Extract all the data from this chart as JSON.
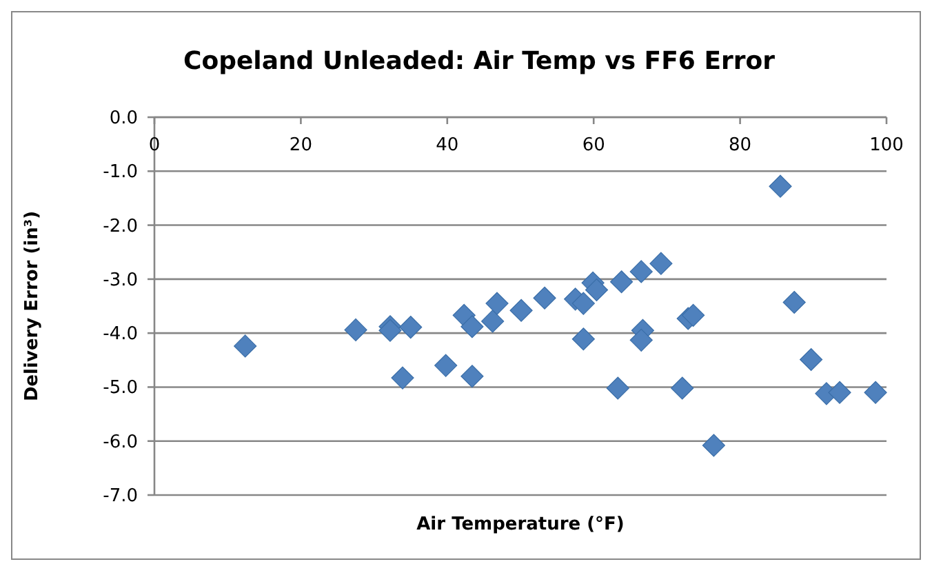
{
  "chart_data": {
    "type": "scatter",
    "title": "Copeland Unleaded: Air Temp vs FF6 Error",
    "xlabel": "Air Temperature (°F)",
    "ylabel": "Delivery Error (in³)",
    "x": [
      12.4,
      27.5,
      32.2,
      32.2,
      35.0,
      33.9,
      39.8,
      42.3,
      43.4,
      43.4,
      46.2,
      46.8,
      50.1,
      53.3,
      57.5,
      58.6,
      58.6,
      59.9,
      60.4,
      63.3,
      63.8,
      66.5,
      66.7,
      66.5,
      69.2,
      72.1,
      72.9,
      73.6,
      76.4,
      85.5,
      87.4,
      89.7,
      91.8,
      93.6,
      98.5
    ],
    "series": [
      {
        "color": "#4f81bd",
        "values": [
          -4.24,
          -3.94,
          -3.88,
          -3.95,
          -3.89,
          -4.83,
          -4.6,
          -3.67,
          -3.88,
          -4.8,
          -3.78,
          -3.45,
          -3.58,
          -3.35,
          -3.37,
          -3.45,
          -4.11,
          -3.07,
          -3.2,
          -5.02,
          -3.05,
          -2.86,
          -3.95,
          -4.13,
          -2.71,
          -5.02,
          -3.73,
          -3.67,
          -6.08,
          -1.28,
          -3.43,
          -4.49,
          -5.12,
          -5.1,
          -5.1
        ]
      }
    ],
    "xlim": [
      0,
      100
    ],
    "xticks": [
      0,
      20,
      40,
      60,
      80,
      100
    ],
    "ylim": [
      -7,
      0
    ],
    "yticks": [
      {
        "value": 0,
        "label": "0.0"
      },
      {
        "value": -1,
        "label": "-1.0"
      },
      {
        "value": -2,
        "label": "-2.0"
      },
      {
        "value": -3,
        "label": "-3.0"
      },
      {
        "value": -4,
        "label": "-4.0"
      },
      {
        "value": -5,
        "label": "-5.0"
      },
      {
        "value": -6,
        "label": "-6.0"
      },
      {
        "value": -7,
        "label": "-7.0"
      }
    ],
    "grid": "y",
    "marker": "diamond"
  }
}
